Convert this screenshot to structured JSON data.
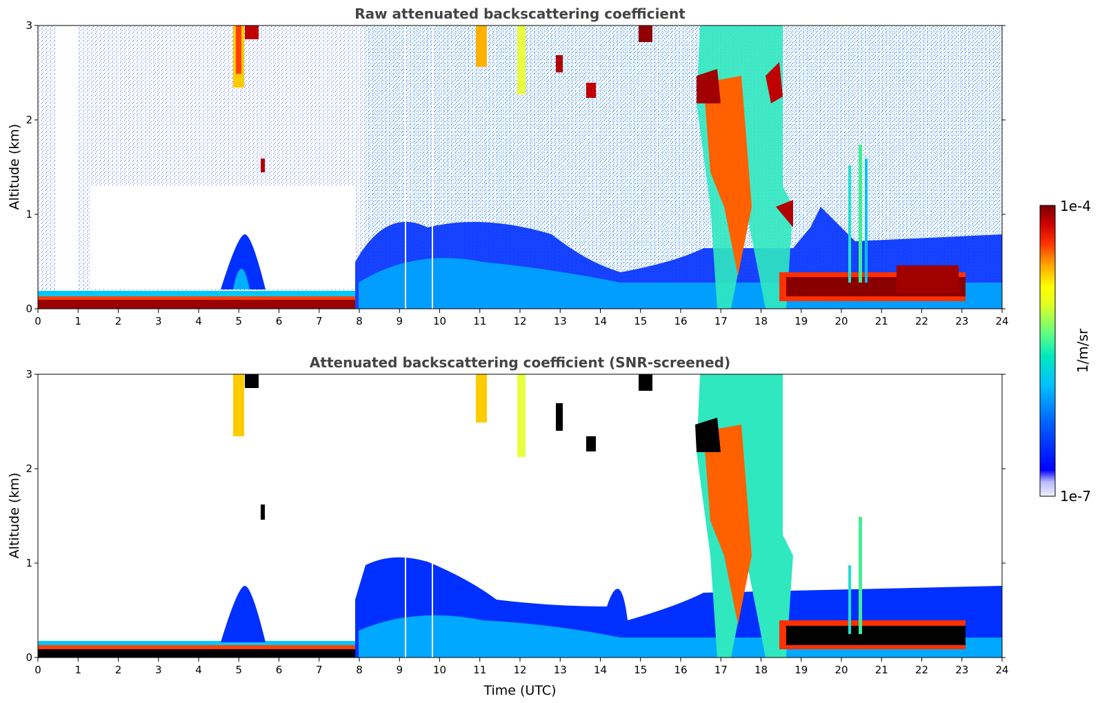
{
  "colors": {
    "text": "#444444",
    "colormap": [
      "#f0f0ff",
      "#c8c8ff",
      "#9090ff",
      "#0000ff",
      "#0050ff",
      "#00a0ff",
      "#00e0e0",
      "#40ff90",
      "#c0ff30",
      "#ffff00",
      "#ffb000",
      "#ff4000",
      "#d00000",
      "#800000"
    ],
    "masked": "#000000"
  },
  "colorbar": {
    "max_label": "1e-4",
    "min_label": "1e-7",
    "unit_label": "1/m/sr"
  },
  "chart_data": [
    {
      "type": "heatmap",
      "id": "raw",
      "title": "Raw attenuated backscattering coefficient",
      "xlabel": "",
      "ylabel": "Altitude (km)",
      "xlim": [
        0,
        24
      ],
      "ylim": [
        0,
        3
      ],
      "xticks": [
        "0",
        "1",
        "2",
        "3",
        "4",
        "5",
        "6",
        "7",
        "8",
        "9",
        "10",
        "11",
        "12",
        "13",
        "14",
        "15",
        "16",
        "17",
        "18",
        "19",
        "20",
        "21",
        "22",
        "23",
        "24"
      ],
      "yticks": [
        "0",
        "1",
        "2",
        "3"
      ],
      "features": [
        {
          "name": "surface aerosol layer",
          "t": [
            0,
            7.8
          ],
          "alt": [
            0.0,
            0.15
          ],
          "level": "very high"
        },
        {
          "name": "boundary layer",
          "t": [
            7.8,
            23.8
          ],
          "alt": [
            0.0,
            0.9
          ],
          "level": "moderate"
        },
        {
          "name": "convective plume",
          "t": [
            4.6,
            5.3
          ],
          "alt": [
            0.15,
            0.85
          ],
          "level": "moderate"
        },
        {
          "name": "elevated cloud",
          "t": [
            16.3,
            18.4
          ],
          "alt": [
            1.0,
            2.9
          ],
          "level": "high"
        },
        {
          "name": "low cloud layer",
          "t": [
            18.6,
            23.0
          ],
          "alt": [
            0.1,
            0.4
          ],
          "level": "very high"
        },
        {
          "name": "precipitation streaks",
          "t": [
            19.5,
            21.0
          ],
          "alt": [
            0.3,
            1.5
          ],
          "level": "moderate"
        }
      ]
    },
    {
      "type": "heatmap",
      "id": "snr",
      "title": "Attenuated backscattering coefficient (SNR-screened)",
      "xlabel": "Time (UTC)",
      "ylabel": "Altitude (km)",
      "xlim": [
        0,
        24
      ],
      "ylim": [
        0,
        3
      ],
      "xticks": [
        "0",
        "1",
        "2",
        "3",
        "4",
        "5",
        "6",
        "7",
        "8",
        "9",
        "10",
        "11",
        "12",
        "13",
        "14",
        "15",
        "16",
        "17",
        "18",
        "19",
        "20",
        "21",
        "22",
        "23",
        "24"
      ],
      "yticks": [
        "0",
        "1",
        "2",
        "3"
      ],
      "features": [
        {
          "name": "surface aerosol layer",
          "t": [
            0,
            7.8
          ],
          "alt": [
            0.0,
            0.12
          ],
          "level": "very high"
        },
        {
          "name": "boundary layer",
          "t": [
            8.0,
            23.8
          ],
          "alt": [
            0.0,
            0.95
          ],
          "level": "moderate"
        },
        {
          "name": "elevated cloud",
          "t": [
            16.3,
            18.4
          ],
          "alt": [
            1.0,
            2.9
          ],
          "level": "high"
        },
        {
          "name": "low cloud layer",
          "t": [
            18.6,
            23.0
          ],
          "alt": [
            0.1,
            0.4
          ],
          "level": "very high"
        }
      ]
    }
  ]
}
